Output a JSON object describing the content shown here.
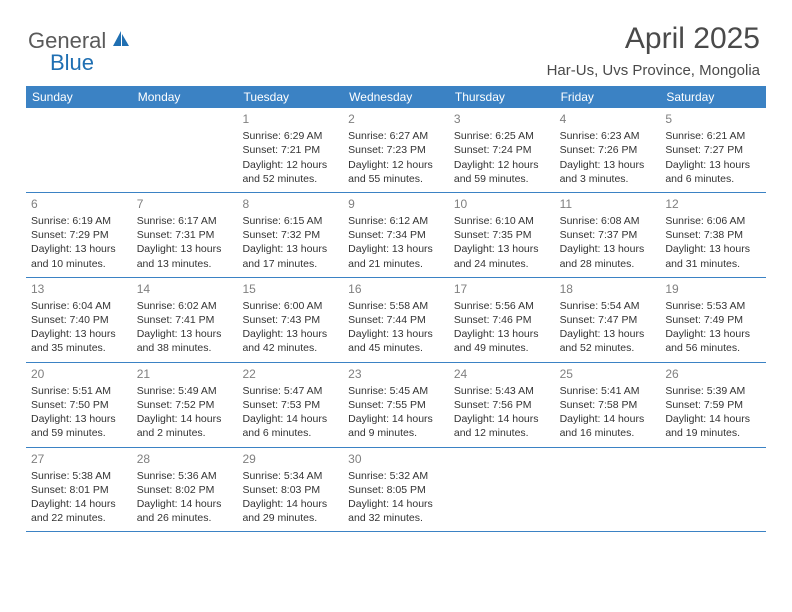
{
  "logo": {
    "general": "General",
    "blue": "Blue"
  },
  "title": "April 2025",
  "location": "Har-Us, Uvs Province, Mongolia",
  "colors": {
    "header_bg": "#3b82c4",
    "header_text": "#ffffff",
    "border": "#3b82c4",
    "day_num": "#808080",
    "body_text": "#333333",
    "title_text": "#4a4a4a",
    "logo_gray": "#5a5a5a",
    "logo_blue": "#1f6fb2"
  },
  "weekdays": [
    "Sunday",
    "Monday",
    "Tuesday",
    "Wednesday",
    "Thursday",
    "Friday",
    "Saturday"
  ],
  "weeks": [
    [
      {
        "n": "",
        "sr": "",
        "ss": "",
        "dl": ""
      },
      {
        "n": "",
        "sr": "",
        "ss": "",
        "dl": ""
      },
      {
        "n": "1",
        "sr": "Sunrise: 6:29 AM",
        "ss": "Sunset: 7:21 PM",
        "dl": "Daylight: 12 hours and 52 minutes."
      },
      {
        "n": "2",
        "sr": "Sunrise: 6:27 AM",
        "ss": "Sunset: 7:23 PM",
        "dl": "Daylight: 12 hours and 55 minutes."
      },
      {
        "n": "3",
        "sr": "Sunrise: 6:25 AM",
        "ss": "Sunset: 7:24 PM",
        "dl": "Daylight: 12 hours and 59 minutes."
      },
      {
        "n": "4",
        "sr": "Sunrise: 6:23 AM",
        "ss": "Sunset: 7:26 PM",
        "dl": "Daylight: 13 hours and 3 minutes."
      },
      {
        "n": "5",
        "sr": "Sunrise: 6:21 AM",
        "ss": "Sunset: 7:27 PM",
        "dl": "Daylight: 13 hours and 6 minutes."
      }
    ],
    [
      {
        "n": "6",
        "sr": "Sunrise: 6:19 AM",
        "ss": "Sunset: 7:29 PM",
        "dl": "Daylight: 13 hours and 10 minutes."
      },
      {
        "n": "7",
        "sr": "Sunrise: 6:17 AM",
        "ss": "Sunset: 7:31 PM",
        "dl": "Daylight: 13 hours and 13 minutes."
      },
      {
        "n": "8",
        "sr": "Sunrise: 6:15 AM",
        "ss": "Sunset: 7:32 PM",
        "dl": "Daylight: 13 hours and 17 minutes."
      },
      {
        "n": "9",
        "sr": "Sunrise: 6:12 AM",
        "ss": "Sunset: 7:34 PM",
        "dl": "Daylight: 13 hours and 21 minutes."
      },
      {
        "n": "10",
        "sr": "Sunrise: 6:10 AM",
        "ss": "Sunset: 7:35 PM",
        "dl": "Daylight: 13 hours and 24 minutes."
      },
      {
        "n": "11",
        "sr": "Sunrise: 6:08 AM",
        "ss": "Sunset: 7:37 PM",
        "dl": "Daylight: 13 hours and 28 minutes."
      },
      {
        "n": "12",
        "sr": "Sunrise: 6:06 AM",
        "ss": "Sunset: 7:38 PM",
        "dl": "Daylight: 13 hours and 31 minutes."
      }
    ],
    [
      {
        "n": "13",
        "sr": "Sunrise: 6:04 AM",
        "ss": "Sunset: 7:40 PM",
        "dl": "Daylight: 13 hours and 35 minutes."
      },
      {
        "n": "14",
        "sr": "Sunrise: 6:02 AM",
        "ss": "Sunset: 7:41 PM",
        "dl": "Daylight: 13 hours and 38 minutes."
      },
      {
        "n": "15",
        "sr": "Sunrise: 6:00 AM",
        "ss": "Sunset: 7:43 PM",
        "dl": "Daylight: 13 hours and 42 minutes."
      },
      {
        "n": "16",
        "sr": "Sunrise: 5:58 AM",
        "ss": "Sunset: 7:44 PM",
        "dl": "Daylight: 13 hours and 45 minutes."
      },
      {
        "n": "17",
        "sr": "Sunrise: 5:56 AM",
        "ss": "Sunset: 7:46 PM",
        "dl": "Daylight: 13 hours and 49 minutes."
      },
      {
        "n": "18",
        "sr": "Sunrise: 5:54 AM",
        "ss": "Sunset: 7:47 PM",
        "dl": "Daylight: 13 hours and 52 minutes."
      },
      {
        "n": "19",
        "sr": "Sunrise: 5:53 AM",
        "ss": "Sunset: 7:49 PM",
        "dl": "Daylight: 13 hours and 56 minutes."
      }
    ],
    [
      {
        "n": "20",
        "sr": "Sunrise: 5:51 AM",
        "ss": "Sunset: 7:50 PM",
        "dl": "Daylight: 13 hours and 59 minutes."
      },
      {
        "n": "21",
        "sr": "Sunrise: 5:49 AM",
        "ss": "Sunset: 7:52 PM",
        "dl": "Daylight: 14 hours and 2 minutes."
      },
      {
        "n": "22",
        "sr": "Sunrise: 5:47 AM",
        "ss": "Sunset: 7:53 PM",
        "dl": "Daylight: 14 hours and 6 minutes."
      },
      {
        "n": "23",
        "sr": "Sunrise: 5:45 AM",
        "ss": "Sunset: 7:55 PM",
        "dl": "Daylight: 14 hours and 9 minutes."
      },
      {
        "n": "24",
        "sr": "Sunrise: 5:43 AM",
        "ss": "Sunset: 7:56 PM",
        "dl": "Daylight: 14 hours and 12 minutes."
      },
      {
        "n": "25",
        "sr": "Sunrise: 5:41 AM",
        "ss": "Sunset: 7:58 PM",
        "dl": "Daylight: 14 hours and 16 minutes."
      },
      {
        "n": "26",
        "sr": "Sunrise: 5:39 AM",
        "ss": "Sunset: 7:59 PM",
        "dl": "Daylight: 14 hours and 19 minutes."
      }
    ],
    [
      {
        "n": "27",
        "sr": "Sunrise: 5:38 AM",
        "ss": "Sunset: 8:01 PM",
        "dl": "Daylight: 14 hours and 22 minutes."
      },
      {
        "n": "28",
        "sr": "Sunrise: 5:36 AM",
        "ss": "Sunset: 8:02 PM",
        "dl": "Daylight: 14 hours and 26 minutes."
      },
      {
        "n": "29",
        "sr": "Sunrise: 5:34 AM",
        "ss": "Sunset: 8:03 PM",
        "dl": "Daylight: 14 hours and 29 minutes."
      },
      {
        "n": "30",
        "sr": "Sunrise: 5:32 AM",
        "ss": "Sunset: 8:05 PM",
        "dl": "Daylight: 14 hours and 32 minutes."
      },
      {
        "n": "",
        "sr": "",
        "ss": "",
        "dl": ""
      },
      {
        "n": "",
        "sr": "",
        "ss": "",
        "dl": ""
      },
      {
        "n": "",
        "sr": "",
        "ss": "",
        "dl": ""
      }
    ]
  ]
}
